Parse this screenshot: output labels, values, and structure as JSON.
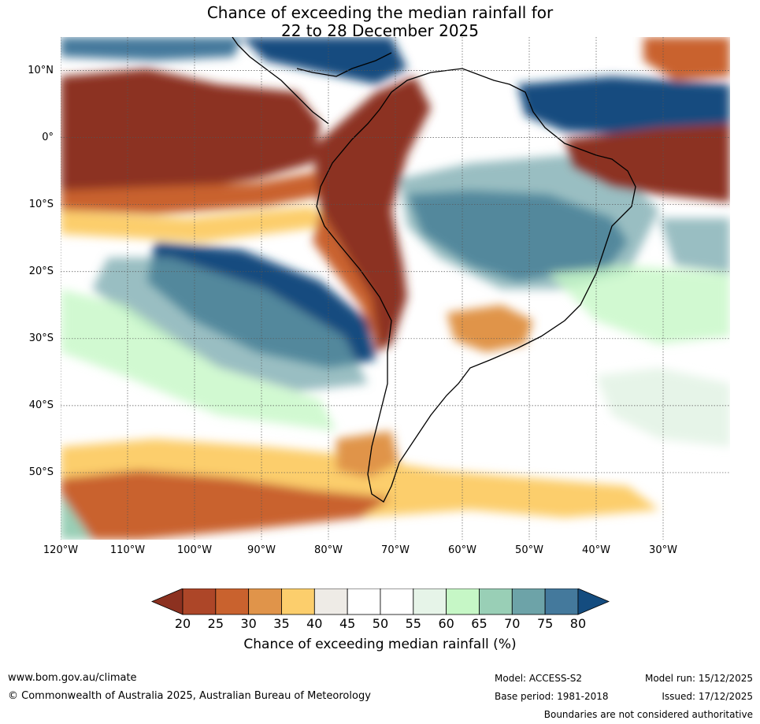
{
  "title": {
    "line1": "Chance of exceeding the median rainfall for",
    "line2": "22 to 28 December 2025"
  },
  "map": {
    "lon_range": [
      -120,
      -20
    ],
    "lat_range": [
      -60,
      15
    ],
    "lat_ticks": [
      "10°N",
      "0°",
      "10°S",
      "20°S",
      "30°S",
      "40°S",
      "50°S"
    ],
    "lon_ticks": [
      "120°W",
      "110°W",
      "100°W",
      "90°W",
      "80°W",
      "70°W",
      "60°W",
      "50°W",
      "40°W",
      "30°W"
    ],
    "gridlines": true
  },
  "colorbar": {
    "levels": [
      "20",
      "25",
      "30",
      "35",
      "40",
      "45",
      "50",
      "55",
      "60",
      "65",
      "70",
      "75",
      "80"
    ],
    "colors": [
      "#8c3120",
      "#ad4628",
      "#c9622e",
      "#e0944a",
      "#fcce6c",
      "#eeebe6",
      "#ffffff",
      "#ffffff",
      "#e6f4e8",
      "#c6f7c6",
      "#99cfb6",
      "#6da3a8",
      "#44799c",
      "#144c7f"
    ],
    "title": "Chance of exceeding median rainfall (%)"
  },
  "footer": {
    "website": "www.bom.gov.au/climate",
    "copyright": "© Commonwealth of Australia 2025, Australian Bureau of Meteorology",
    "model": "Model: ACCESS-S2",
    "base_period": "Base period: 1981-2018",
    "model_run": "Model run: 15/12/2025",
    "issued": "Issued: 17/12/2025",
    "disclaimer": "Boundaries are not considered authoritative"
  }
}
